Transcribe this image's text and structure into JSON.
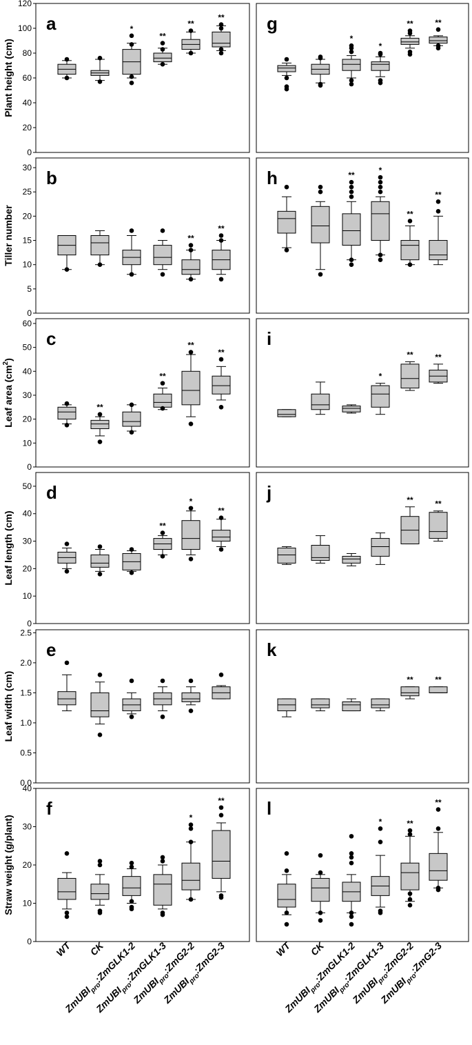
{
  "chart_data": [
    {
      "type": "box",
      "panel": "a",
      "ylabel": "Plant height (cm)",
      "ylim": [
        0,
        120
      ],
      "yticks": [
        0,
        20,
        40,
        60,
        80,
        100,
        120
      ],
      "boxes": [
        {
          "q1": 63,
          "median": 67,
          "q3": 71,
          "wlo": 60,
          "whi": 74,
          "outliers": [
            60,
            75
          ],
          "sig": ""
        },
        {
          "q1": 62,
          "median": 64,
          "q3": 66,
          "wlo": 58,
          "whi": 75,
          "outliers": [
            57,
            76
          ],
          "sig": ""
        },
        {
          "q1": 63,
          "median": 73,
          "q3": 83,
          "wlo": 60,
          "whi": 88,
          "outliers": [
            56,
            61,
            87,
            94
          ],
          "sig": "*"
        },
        {
          "q1": 73,
          "median": 76,
          "q3": 80,
          "wlo": 71,
          "whi": 84,
          "outliers": [
            71,
            83,
            88
          ],
          "sig": "**"
        },
        {
          "q1": 83,
          "median": 87,
          "q3": 91,
          "wlo": 80,
          "whi": 97,
          "outliers": [
            80,
            98
          ],
          "sig": "**"
        },
        {
          "q1": 85,
          "median": 88,
          "q3": 97,
          "wlo": 82,
          "whi": 102,
          "outliers": [
            80,
            83,
            100,
            103
          ],
          "sig": "**"
        }
      ]
    },
    {
      "type": "box",
      "panel": "b",
      "ylabel": "Tiller number",
      "ylim": [
        0,
        32
      ],
      "yticks": [
        0,
        5,
        10,
        15,
        20,
        25,
        30
      ],
      "boxes": [
        {
          "q1": 12,
          "median": 14,
          "q3": 16,
          "wlo": 9,
          "whi": 16,
          "outliers": [
            9
          ],
          "sig": ""
        },
        {
          "q1": 12,
          "median": 14.5,
          "q3": 16,
          "wlo": 10,
          "whi": 17,
          "outliers": [
            10
          ],
          "sig": ""
        },
        {
          "q1": 10,
          "median": 11.5,
          "q3": 13,
          "wlo": 8,
          "whi": 16,
          "outliers": [
            8,
            17
          ],
          "sig": ""
        },
        {
          "q1": 10,
          "median": 11.5,
          "q3": 14,
          "wlo": 9,
          "whi": 15,
          "outliers": [
            8,
            17
          ],
          "sig": ""
        },
        {
          "q1": 8,
          "median": 9,
          "q3": 11,
          "wlo": 7,
          "whi": 13,
          "outliers": [
            7,
            13,
            14
          ],
          "sig": "**"
        },
        {
          "q1": 9,
          "median": 11,
          "q3": 13,
          "wlo": 8,
          "whi": 15,
          "outliers": [
            7,
            15,
            16
          ],
          "sig": "**"
        }
      ]
    },
    {
      "type": "box",
      "panel": "c",
      "ylabel": "Leaf area (cm",
      "ylabel_sup": "2",
      "ylabel_end": ")",
      "ylim": [
        0,
        62
      ],
      "yticks": [
        0,
        10,
        20,
        30,
        40,
        50,
        60
      ],
      "boxes": [
        {
          "q1": 20,
          "median": 23,
          "q3": 25,
          "wlo": 18,
          "whi": 26,
          "outliers": [
            17.5,
            26.5
          ],
          "sig": ""
        },
        {
          "q1": 16,
          "median": 18,
          "q3": 19.5,
          "wlo": 13,
          "whi": 21,
          "outliers": [
            10.5,
            22
          ],
          "sig": "**"
        },
        {
          "q1": 17,
          "median": 19,
          "q3": 23,
          "wlo": 15,
          "whi": 26,
          "outliers": [
            14.5,
            26
          ],
          "sig": ""
        },
        {
          "q1": 25,
          "median": 27,
          "q3": 30.5,
          "wlo": 24,
          "whi": 33,
          "outliers": [
            24.5,
            35
          ],
          "sig": "**"
        },
        {
          "q1": 26,
          "median": 32,
          "q3": 40,
          "wlo": 21,
          "whi": 47,
          "outliers": [
            18,
            48
          ],
          "sig": "**"
        },
        {
          "q1": 30.5,
          "median": 34,
          "q3": 38,
          "wlo": 28,
          "whi": 42,
          "outliers": [
            25,
            45
          ],
          "sig": "**"
        }
      ]
    },
    {
      "type": "box",
      "panel": "d",
      "ylabel": "Leaf length (cm)",
      "ylim": [
        0,
        55
      ],
      "yticks": [
        0,
        10,
        20,
        30,
        40,
        50
      ],
      "boxes": [
        {
          "q1": 22,
          "median": 24,
          "q3": 26,
          "wlo": 20,
          "whi": 27.5,
          "outliers": [
            19,
            29
          ],
          "sig": ""
        },
        {
          "q1": 20.5,
          "median": 22,
          "q3": 25,
          "wlo": 19,
          "whi": 27,
          "outliers": [
            18,
            28
          ],
          "sig": ""
        },
        {
          "q1": 19.5,
          "median": 22.5,
          "q3": 25.5,
          "wlo": 19,
          "whi": 26.5,
          "outliers": [
            18.5,
            27
          ],
          "sig": ""
        },
        {
          "q1": 27,
          "median": 29,
          "q3": 31,
          "wlo": 25,
          "whi": 32,
          "outliers": [
            24.5,
            33
          ],
          "sig": "**"
        },
        {
          "q1": 27,
          "median": 31,
          "q3": 37.5,
          "wlo": 25,
          "whi": 41,
          "outliers": [
            23.5,
            42
          ],
          "sig": "*"
        },
        {
          "q1": 30,
          "median": 31.5,
          "q3": 34,
          "wlo": 28,
          "whi": 38,
          "outliers": [
            27,
            38.5
          ],
          "sig": "**"
        }
      ]
    },
    {
      "type": "box",
      "panel": "e",
      "ylabel": "Leaf width (cm)",
      "ylim": [
        0,
        2.55
      ],
      "yticks": [
        0,
        0.5,
        1,
        1.5,
        2,
        2.5
      ],
      "ytick_labels": [
        "0.0",
        "0.5",
        "1.0",
        "1.5",
        "2.0",
        "2.5"
      ],
      "boxes": [
        {
          "q1": 1.3,
          "median": 1.4,
          "q3": 1.52,
          "wlo": 1.2,
          "whi": 1.8,
          "outliers": [
            2.0
          ],
          "sig": ""
        },
        {
          "q1": 1.1,
          "median": 1.2,
          "q3": 1.5,
          "wlo": 0.98,
          "whi": 1.68,
          "outliers": [
            0.8,
            1.8
          ],
          "sig": ""
        },
        {
          "q1": 1.2,
          "median": 1.3,
          "q3": 1.4,
          "wlo": 1.15,
          "whi": 1.5,
          "outliers": [
            1.1,
            1.7
          ],
          "sig": ""
        },
        {
          "q1": 1.3,
          "median": 1.4,
          "q3": 1.5,
          "wlo": 1.2,
          "whi": 1.6,
          "outliers": [
            1.1,
            1.7
          ],
          "sig": ""
        },
        {
          "q1": 1.35,
          "median": 1.4,
          "q3": 1.5,
          "wlo": 1.3,
          "whi": 1.6,
          "outliers": [
            1.2,
            1.7
          ],
          "sig": ""
        },
        {
          "q1": 1.4,
          "median": 1.5,
          "q3": 1.6,
          "wlo": 1.4,
          "whi": 1.62,
          "outliers": [
            1.8
          ],
          "sig": ""
        }
      ]
    },
    {
      "type": "box",
      "panel": "f",
      "ylabel": "Straw weight (g/plant)",
      "ylim": [
        0,
        40
      ],
      "yticks": [
        0,
        10,
        20,
        30,
        40
      ],
      "boxes": [
        {
          "q1": 11,
          "median": 13,
          "q3": 16.5,
          "wlo": 8.5,
          "whi": 18,
          "outliers": [
            6.5,
            7.5,
            23
          ],
          "sig": ""
        },
        {
          "q1": 11,
          "median": 12.5,
          "q3": 15,
          "wlo": 9.5,
          "whi": 17.5,
          "outliers": [
            7.5,
            8,
            20,
            21
          ],
          "sig": ""
        },
        {
          "q1": 12,
          "median": 14,
          "q3": 17,
          "wlo": 10,
          "whi": 19,
          "outliers": [
            8.5,
            9,
            10.5,
            19.5,
            20.5
          ],
          "sig": ""
        },
        {
          "q1": 9.5,
          "median": 15,
          "q3": 17.5,
          "wlo": 8.5,
          "whi": 20,
          "outliers": [
            7,
            7.5,
            21,
            22
          ],
          "sig": ""
        },
        {
          "q1": 13.5,
          "median": 16,
          "q3": 20.5,
          "wlo": 11,
          "whi": 26,
          "outliers": [
            11,
            26,
            29.5,
            30.5
          ],
          "sig": "*"
        },
        {
          "q1": 16.5,
          "median": 21,
          "q3": 29,
          "wlo": 13,
          "whi": 31,
          "outliers": [
            11.5,
            12,
            33,
            35
          ],
          "sig": "**"
        }
      ]
    },
    {
      "type": "box",
      "panel": "g",
      "ylim": [
        0,
        120
      ],
      "yticks": [
        0,
        20,
        40,
        60,
        80,
        100,
        120
      ],
      "boxes": [
        {
          "q1": 65,
          "median": 68,
          "q3": 70,
          "wlo": 62,
          "whi": 72,
          "outliers": [
            51,
            53,
            60,
            75
          ],
          "sig": ""
        },
        {
          "q1": 63,
          "median": 67,
          "q3": 71,
          "wlo": 56,
          "whi": 75,
          "outliers": [
            54,
            55,
            76,
            77
          ],
          "sig": ""
        },
        {
          "q1": 66,
          "median": 71,
          "q3": 75,
          "wlo": 60,
          "whi": 78,
          "outliers": [
            55,
            58,
            81,
            84,
            86
          ],
          "sig": "*"
        },
        {
          "q1": 66,
          "median": 71,
          "q3": 73,
          "wlo": 61,
          "whi": 77,
          "outliers": [
            56,
            58,
            79,
            80
          ],
          "sig": "*"
        },
        {
          "q1": 87,
          "median": 89,
          "q3": 92,
          "wlo": 84,
          "whi": 94,
          "outliers": [
            79,
            81,
            96,
            98
          ],
          "sig": "**"
        },
        {
          "q1": 88,
          "median": 90,
          "q3": 93,
          "wlo": 86,
          "whi": 94,
          "outliers": [
            84,
            86,
            99
          ],
          "sig": "**"
        }
      ]
    },
    {
      "type": "box",
      "panel": "h",
      "ylim": [
        0,
        32
      ],
      "yticks": [
        0,
        5,
        10,
        15,
        20,
        25,
        30
      ],
      "boxes": [
        {
          "q1": 16.5,
          "median": 19.5,
          "q3": 21,
          "wlo": 13.5,
          "whi": 24,
          "outliers": [
            13,
            26
          ],
          "sig": ""
        },
        {
          "q1": 14.5,
          "median": 18,
          "q3": 22,
          "wlo": 9,
          "whi": 23,
          "outliers": [
            8,
            25,
            26
          ],
          "sig": ""
        },
        {
          "q1": 14,
          "median": 17,
          "q3": 20.5,
          "wlo": 11,
          "whi": 23,
          "outliers": [
            10,
            11,
            24,
            25,
            26,
            27
          ],
          "sig": "**"
        },
        {
          "q1": 15,
          "median": 20.5,
          "q3": 23,
          "wlo": 12,
          "whi": 24,
          "outliers": [
            11,
            12,
            25,
            26,
            27,
            28
          ],
          "sig": "*"
        },
        {
          "q1": 11,
          "median": 14,
          "q3": 15,
          "wlo": 10,
          "whi": 18,
          "outliers": [
            10,
            19
          ],
          "sig": "**"
        },
        {
          "q1": 11,
          "median": 12,
          "q3": 15,
          "wlo": 10,
          "whi": 20,
          "outliers": [
            21,
            23
          ],
          "sig": "**"
        }
      ]
    },
    {
      "type": "box",
      "panel": "i",
      "ylim": [
        0,
        62
      ],
      "yticks": [
        0,
        10,
        20,
        30,
        40,
        50,
        60
      ],
      "boxes": [
        {
          "q1": 21,
          "median": 22,
          "q3": 24,
          "wlo": 21,
          "whi": 24,
          "outliers": [],
          "sig": ""
        },
        {
          "q1": 24,
          "median": 26,
          "q3": 30.5,
          "wlo": 22,
          "whi": 35.5,
          "outliers": [],
          "sig": ""
        },
        {
          "q1": 23,
          "median": 24.5,
          "q3": 25.5,
          "wlo": 22.5,
          "whi": 26,
          "outliers": [],
          "sig": ""
        },
        {
          "q1": 25,
          "median": 30.5,
          "q3": 34,
          "wlo": 22,
          "whi": 35,
          "outliers": [],
          "sig": "*"
        },
        {
          "q1": 33,
          "median": 37,
          "q3": 43,
          "wlo": 32,
          "whi": 44,
          "outliers": [],
          "sig": "**"
        },
        {
          "q1": 35.5,
          "median": 38,
          "q3": 40.5,
          "wlo": 35,
          "whi": 43,
          "outliers": [],
          "sig": "**"
        }
      ]
    },
    {
      "type": "box",
      "panel": "j",
      "ylim": [
        0,
        55
      ],
      "yticks": [
        0,
        10,
        20,
        30,
        40,
        50
      ],
      "boxes": [
        {
          "q1": 22,
          "median": 25,
          "q3": 27.5,
          "wlo": 21.5,
          "whi": 28,
          "outliers": [],
          "sig": ""
        },
        {
          "q1": 23,
          "median": 24,
          "q3": 28.5,
          "wlo": 22,
          "whi": 32,
          "outliers": [],
          "sig": ""
        },
        {
          "q1": 22,
          "median": 23.5,
          "q3": 24.5,
          "wlo": 21,
          "whi": 25.5,
          "outliers": [],
          "sig": ""
        },
        {
          "q1": 24.5,
          "median": 28,
          "q3": 31,
          "wlo": 21.5,
          "whi": 33,
          "outliers": [],
          "sig": ""
        },
        {
          "q1": 29,
          "median": 34,
          "q3": 39,
          "wlo": 29,
          "whi": 42.5,
          "outliers": [],
          "sig": "**"
        },
        {
          "q1": 31,
          "median": 33.5,
          "q3": 40.5,
          "wlo": 30,
          "whi": 41,
          "outliers": [],
          "sig": "**"
        }
      ]
    },
    {
      "type": "box",
      "panel": "k",
      "ylim": [
        0,
        2.55
      ],
      "yticks": [
        0,
        0.5,
        1,
        1.5,
        2,
        2.5
      ],
      "boxes": [
        {
          "q1": 1.2,
          "median": 1.3,
          "q3": 1.4,
          "wlo": 1.1,
          "whi": 1.4,
          "outliers": [],
          "sig": ""
        },
        {
          "q1": 1.25,
          "median": 1.3,
          "q3": 1.4,
          "wlo": 1.2,
          "whi": 1.4,
          "outliers": [],
          "sig": ""
        },
        {
          "q1": 1.2,
          "median": 1.3,
          "q3": 1.35,
          "wlo": 1.2,
          "whi": 1.4,
          "outliers": [],
          "sig": ""
        },
        {
          "q1": 1.25,
          "median": 1.3,
          "q3": 1.4,
          "wlo": 1.2,
          "whi": 1.4,
          "outliers": [],
          "sig": ""
        },
        {
          "q1": 1.45,
          "median": 1.5,
          "q3": 1.6,
          "wlo": 1.4,
          "whi": 1.6,
          "outliers": [],
          "sig": "**"
        },
        {
          "q1": 1.5,
          "median": 1.5,
          "q3": 1.6,
          "wlo": 1.5,
          "whi": 1.6,
          "outliers": [],
          "sig": "**"
        }
      ]
    },
    {
      "type": "box",
      "panel": "l",
      "ylim": [
        0,
        40
      ],
      "yticks": [
        0,
        10,
        20,
        30,
        40
      ],
      "boxes": [
        {
          "q1": 9,
          "median": 11,
          "q3": 15,
          "wlo": 7,
          "whi": 17.5,
          "outliers": [
            4.5,
            7.5,
            18.5,
            23
          ],
          "sig": ""
        },
        {
          "q1": 10.5,
          "median": 14,
          "q3": 16.5,
          "wlo": 7.5,
          "whi": 17.5,
          "outliers": [
            5.5,
            7.5,
            18,
            22.5
          ],
          "sig": ""
        },
        {
          "q1": 10.5,
          "median": 13,
          "q3": 15.5,
          "wlo": 7.5,
          "whi": 17.5,
          "outliers": [
            4.5,
            6.5,
            7.5,
            20.5,
            22,
            23,
            27.5
          ],
          "sig": ""
        },
        {
          "q1": 12,
          "median": 14.5,
          "q3": 17,
          "wlo": 9,
          "whi": 22.5,
          "outliers": [
            7.5,
            8,
            26,
            29.5
          ],
          "sig": "*"
        },
        {
          "q1": 13.5,
          "median": 18,
          "q3": 20.5,
          "wlo": 10.5,
          "whi": 27.5,
          "outliers": [
            9.5,
            11,
            12.5,
            28,
            29
          ],
          "sig": "**"
        },
        {
          "q1": 16,
          "median": 18.5,
          "q3": 23,
          "wlo": 14,
          "whi": 28.5,
          "outliers": [
            13.5,
            14,
            29.5,
            34.5
          ],
          "sig": "**"
        }
      ]
    }
  ],
  "categories": [
    {
      "pre": "WT",
      "sub": "",
      "post": ""
    },
    {
      "pre": "CK",
      "sub": "",
      "post": ""
    },
    {
      "pre": "ZmUBI",
      "sub": "pro",
      "post": ":ZmGLK1-2"
    },
    {
      "pre": "ZmUBI",
      "sub": "pro",
      "post": ":ZmGLK1-3"
    },
    {
      "pre": "ZmUBI",
      "sub": "pro",
      "post": ":ZmG2-2"
    },
    {
      "pre": "ZmUBI",
      "sub": "pro",
      "post": ":ZmG2-3"
    }
  ]
}
